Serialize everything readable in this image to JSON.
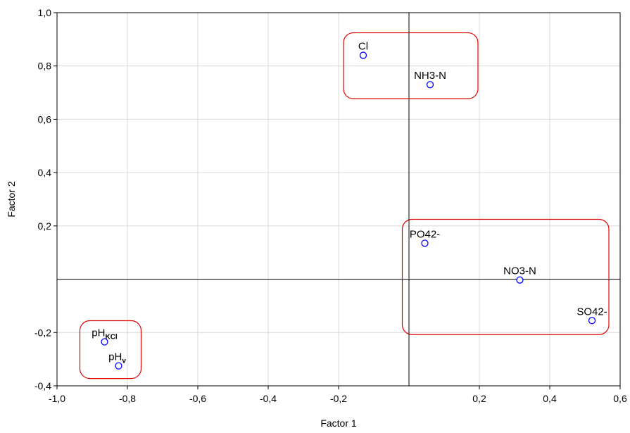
{
  "chart_data": {
    "type": "scatter",
    "title": "",
    "xlabel": "Factor 1",
    "ylabel": "Factor 2",
    "xlim": [
      -1.0,
      0.6
    ],
    "ylim": [
      -0.4,
      1.0
    ],
    "grid": true,
    "x_ticks": [
      {
        "value": -1.0,
        "label": "-1,0"
      },
      {
        "value": -0.8,
        "label": "-0,8"
      },
      {
        "value": -0.6,
        "label": "-0,6"
      },
      {
        "value": -0.4,
        "label": "-0,4"
      },
      {
        "value": -0.2,
        "label": "-0,2"
      },
      {
        "value": 0.2,
        "label": "0,2"
      },
      {
        "value": 0.4,
        "label": "0,4"
      },
      {
        "value": 0.6,
        "label": "0,6"
      }
    ],
    "y_ticks": [
      {
        "value": -0.4,
        "label": "-0,4"
      },
      {
        "value": -0.2,
        "label": "-0,2"
      },
      {
        "value": 0.2,
        "label": "0,2"
      },
      {
        "value": 0.4,
        "label": "0,4"
      },
      {
        "value": 0.6,
        "label": "0,6"
      },
      {
        "value": 0.8,
        "label": "0,8"
      },
      {
        "value": 1.0,
        "label": "1,0"
      }
    ],
    "points": [
      {
        "label": "Cl",
        "x": -0.13,
        "y": 0.84
      },
      {
        "label": "NH3-N",
        "x": 0.06,
        "y": 0.73
      },
      {
        "label": "PO42-",
        "x": 0.045,
        "y": 0.135
      },
      {
        "label": "NO3-N",
        "x": 0.315,
        "y": -0.003
      },
      {
        "label": "SO42-",
        "x": 0.52,
        "y": -0.155
      },
      {
        "label": "pH",
        "subscript": "KCl",
        "x": -0.865,
        "y": -0.235
      },
      {
        "label": "pH",
        "subscript": "v",
        "x": -0.825,
        "y": -0.325
      }
    ],
    "groups": [
      {
        "members": [
          "Cl",
          "NH3-N"
        ]
      },
      {
        "members": [
          "PO42-",
          "NO3-N",
          "SO42-"
        ]
      },
      {
        "members": [
          "pHKCl",
          "pHv"
        ]
      }
    ],
    "colors": {
      "points": "#0000ff",
      "groups": "#e00000",
      "axes": "#000000",
      "grid": "#d9d9d9"
    }
  }
}
